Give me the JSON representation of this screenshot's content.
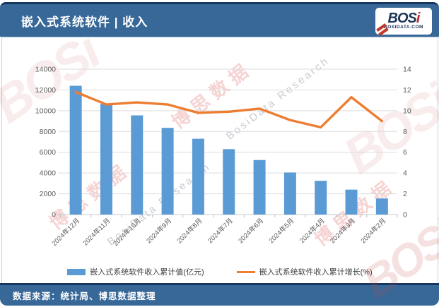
{
  "header": {
    "title": "嵌入式系统软件 | 收入",
    "logo": {
      "brand_main": "BOS",
      "brand_accent": "i",
      "site": "BOSIDATA.COM"
    }
  },
  "footer": {
    "source": "数据来源：统计局、博思数据整理"
  },
  "watermarks": {
    "cn": "博思数据",
    "en": "BosiData Research",
    "logo": "BOSi"
  },
  "colors": {
    "header_blue": "#386898",
    "dark_edge": "#17375E",
    "bar_blue": "#5B9BD5",
    "line_orange": "#ED7D31",
    "gridline": "#DEDEDE",
    "axis_text": "#595959"
  },
  "chart_data": {
    "type": "bar",
    "title": "嵌入式系统软件 | 收入",
    "categories": [
      "2024年12月",
      "2024年11月",
      "2024年10月",
      "2024年9月",
      "2024年8月",
      "2024年7月",
      "2024年6月",
      "2024年5月",
      "2024年4月",
      "2024年3月",
      "2024年2月"
    ],
    "series": [
      {
        "name": "嵌入式系统软件收入累计值(亿元)",
        "type": "bar",
        "axis": "left",
        "color": "#5B9BD5",
        "values": [
          12400,
          10650,
          9550,
          8350,
          7300,
          6300,
          5250,
          4050,
          3250,
          2400,
          1550
        ]
      },
      {
        "name": "嵌入式系统软件收入累计增长(%)",
        "type": "line",
        "axis": "right",
        "color": "#ED7D31",
        "values": [
          11.8,
          10.6,
          10.8,
          10.6,
          9.8,
          9.9,
          10.2,
          9.1,
          8.4,
          11.3,
          9.0
        ]
      }
    ],
    "left_axis": {
      "min": 0,
      "max": 14000,
      "step": 2000,
      "ticks": [
        "0",
        "2000",
        "4000",
        "6000",
        "8000",
        "10000",
        "12000",
        "14000"
      ]
    },
    "right_axis": {
      "min": 0,
      "max": 14,
      "step": 2,
      "ticks": [
        "0",
        "2",
        "4",
        "6",
        "8",
        "10",
        "12",
        "14"
      ]
    },
    "grid": true,
    "legend_position": "bottom"
  }
}
